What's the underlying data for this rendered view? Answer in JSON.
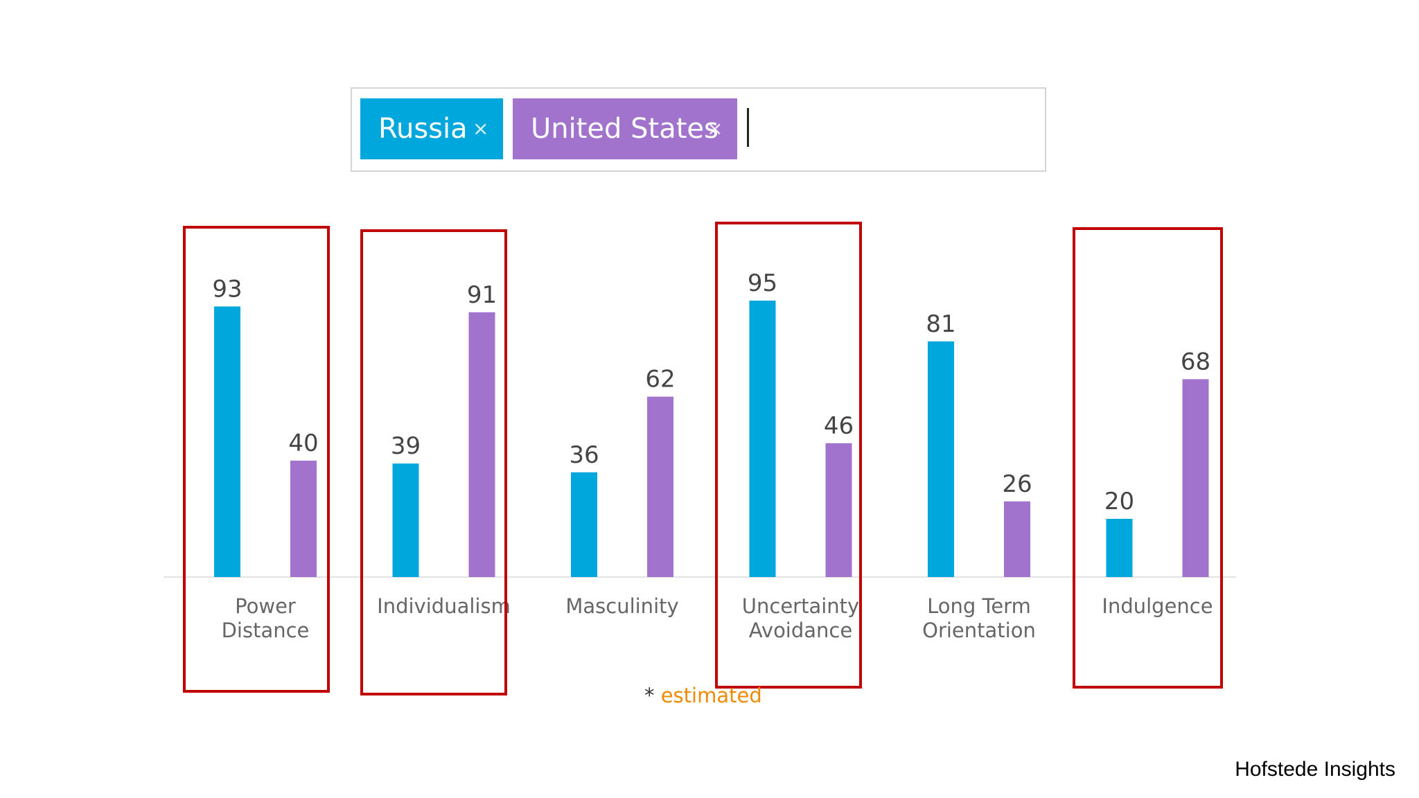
{
  "search": {
    "chips": [
      {
        "label": "Russia",
        "color": "#00a7dc"
      },
      {
        "label": "United States",
        "color": "#a173cc"
      }
    ],
    "remove_glyph": "×"
  },
  "chart_data": {
    "type": "bar",
    "categories": [
      "Power Distance",
      "Individualism",
      "Masculinity",
      "Uncertainty Avoidance",
      "Long Term Orientation",
      "Indulgence"
    ],
    "series": [
      {
        "name": "Russia",
        "color": "#00a7dc",
        "values": [
          93,
          39,
          36,
          95,
          81,
          20
        ]
      },
      {
        "name": "United States",
        "color": "#a173cc",
        "values": [
          40,
          91,
          62,
          46,
          26,
          68
        ]
      }
    ],
    "ylim": [
      0,
      100
    ],
    "grid": false,
    "highlighted_categories": [
      "Power Distance",
      "Individualism",
      "Uncertainty Avoidance",
      "Indulgence"
    ],
    "highlight_color": "#c00000"
  },
  "footnote": {
    "star": "*",
    "word": "estimated"
  },
  "credit": "Hofstede Insights"
}
